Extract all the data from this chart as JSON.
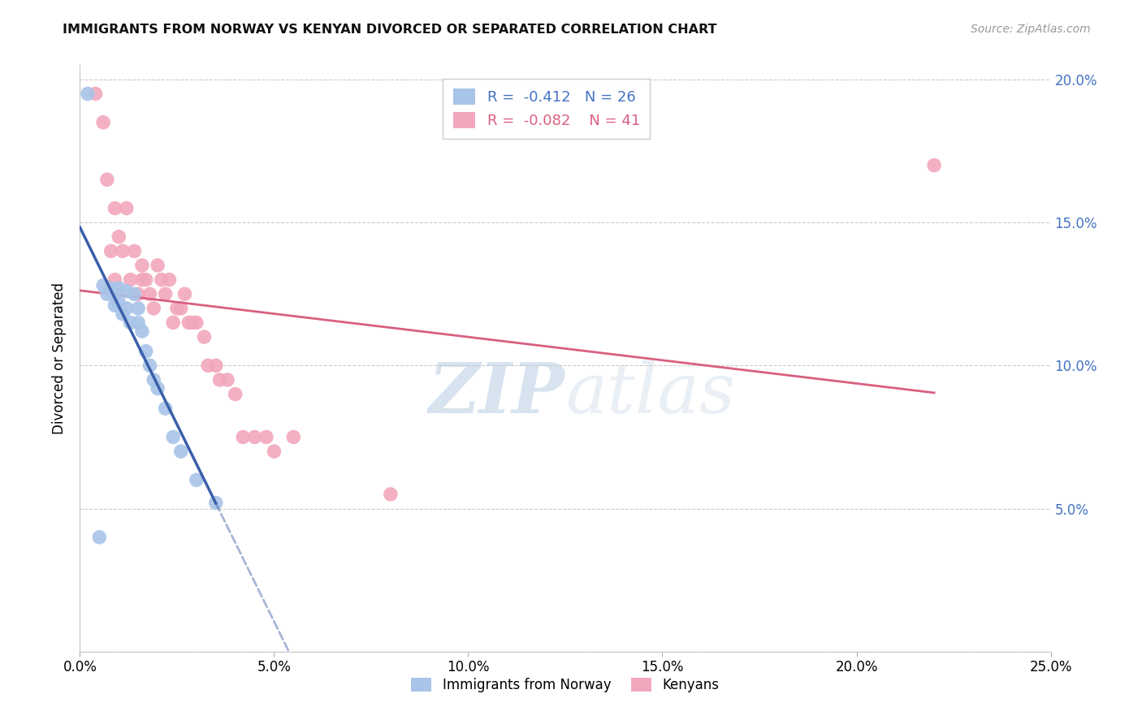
{
  "title": "IMMIGRANTS FROM NORWAY VS KENYAN DIVORCED OR SEPARATED CORRELATION CHART",
  "source": "Source: ZipAtlas.com",
  "ylabel": "Divorced or Separated",
  "legend_label1": "Immigrants from Norway",
  "legend_label2": "Kenyans",
  "r1": "-0.412",
  "n1": "26",
  "r2": "-0.082",
  "n2": "41",
  "xlim": [
    0.0,
    0.25
  ],
  "ylim": [
    0.0,
    0.205
  ],
  "xticks": [
    0.0,
    0.05,
    0.1,
    0.15,
    0.2,
    0.25
  ],
  "yticks_right": [
    0.05,
    0.1,
    0.15,
    0.2
  ],
  "color_norway": "#a8c4e8",
  "color_kenya": "#f2a8bc",
  "color_line_norway": "#3a5faa",
  "color_line_kenya": "#d96080",
  "watermark_zip": "ZIP",
  "watermark_atlas": "atlas",
  "norway_x": [
    0.002,
    0.005,
    0.006,
    0.007,
    0.008,
    0.009,
    0.009,
    0.01,
    0.01,
    0.011,
    0.012,
    0.012,
    0.013,
    0.014,
    0.015,
    0.015,
    0.016,
    0.017,
    0.018,
    0.019,
    0.02,
    0.022,
    0.024,
    0.026,
    0.03,
    0.035
  ],
  "norway_y": [
    0.195,
    0.04,
    0.128,
    0.125,
    0.127,
    0.125,
    0.121,
    0.127,
    0.122,
    0.118,
    0.126,
    0.12,
    0.115,
    0.125,
    0.12,
    0.115,
    0.112,
    0.105,
    0.1,
    0.095,
    0.092,
    0.085,
    0.075,
    0.07,
    0.06,
    0.052
  ],
  "kenya_x": [
    0.004,
    0.006,
    0.007,
    0.008,
    0.009,
    0.009,
    0.01,
    0.011,
    0.012,
    0.013,
    0.014,
    0.015,
    0.016,
    0.016,
    0.017,
    0.018,
    0.019,
    0.02,
    0.021,
    0.022,
    0.023,
    0.024,
    0.025,
    0.026,
    0.027,
    0.028,
    0.029,
    0.03,
    0.032,
    0.033,
    0.035,
    0.036,
    0.038,
    0.04,
    0.042,
    0.045,
    0.048,
    0.05,
    0.055,
    0.08,
    0.22
  ],
  "kenya_y": [
    0.195,
    0.185,
    0.165,
    0.14,
    0.155,
    0.13,
    0.145,
    0.14,
    0.155,
    0.13,
    0.14,
    0.125,
    0.135,
    0.13,
    0.13,
    0.125,
    0.12,
    0.135,
    0.13,
    0.125,
    0.13,
    0.115,
    0.12,
    0.12,
    0.125,
    0.115,
    0.115,
    0.115,
    0.11,
    0.1,
    0.1,
    0.095,
    0.095,
    0.09,
    0.075,
    0.075,
    0.075,
    0.07,
    0.075,
    0.055,
    0.17
  ],
  "norway_line_x0": 0.0,
  "norway_line_x1": 0.035,
  "kenya_line_x0": 0.0,
  "kenya_line_x1": 0.22
}
